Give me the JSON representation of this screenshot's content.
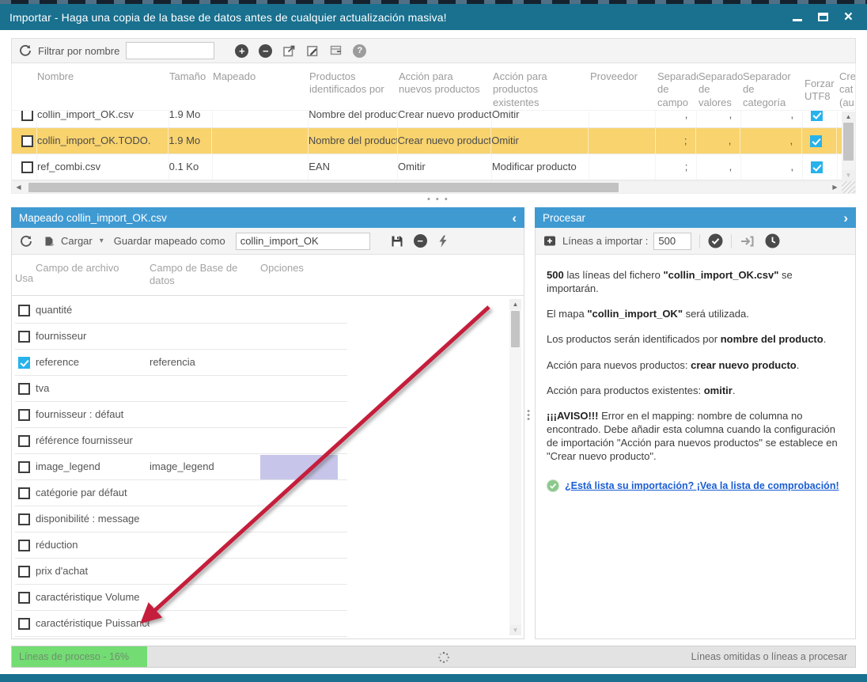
{
  "window": {
    "title": "Importar - Haga una copia de la base de datos antes de cualquier actualización masiva!"
  },
  "colors": {
    "titlebar": "#19708f",
    "panel_header": "#3f9ad2",
    "selected_row_yellow": "#f8d36e",
    "progress_green": "#73dc73",
    "link_blue": "#1a5dd4",
    "checkbox_blue": "#27b2ec",
    "annotation_arrow_red": "#c51e3c"
  },
  "icons": {
    "refresh": "circular-arrows",
    "add": "+",
    "remove": "−",
    "help": "?",
    "chevron_left": "‹",
    "chevron_right": "›",
    "caret_down": "▾",
    "splitter_h": "···",
    "splitter_v": "⋮"
  },
  "files_section": {
    "filter_label": "Filtrar por nombre",
    "filter_value": "",
    "columns": [
      "Nombre",
      "Tamaño",
      "Mapeado",
      "Productos identificados por",
      "Acción para nuevos productos",
      "Acción para productos existentes",
      "Proveedor",
      "Separado de campo",
      "Separado de valores",
      "Separador de categoría",
      "Forzar UTF8",
      "Cre cat (au"
    ],
    "rows": [
      {
        "name": "collin_import_OK.csv",
        "size": "1.9 Mo",
        "mapeado": "",
        "identified_by": "Nombre del producto",
        "new_action": "Crear nuevo producto",
        "existing_action": "Omitir",
        "proveedor": "",
        "sep_field": ",",
        "sep_values": ",",
        "sep_category": ",",
        "utf8": true,
        "selected": false
      },
      {
        "name": "collin_import_OK.TODO.",
        "size": "1.9 Mo",
        "mapeado": "",
        "identified_by": "Nombre del producto",
        "new_action": "Crear nuevo producto",
        "existing_action": "Omitir",
        "proveedor": "",
        "sep_field": ";",
        "sep_values": ",",
        "sep_category": ",",
        "utf8": true,
        "selected": true
      },
      {
        "name": "ref_combi.csv",
        "size": "0.1 Ko",
        "mapeado": "",
        "identified_by": "EAN",
        "new_action": "Omitir",
        "existing_action": "Modificar producto",
        "proveedor": "",
        "sep_field": ";",
        "sep_values": ",",
        "sep_category": ",",
        "utf8": true,
        "selected": false
      }
    ]
  },
  "mapping_panel": {
    "title": "Mapeado collin_import_OK.csv",
    "toolbar": {
      "cargar_label": "Cargar",
      "guardar_label": "Guardar mapeado como",
      "map_name_value": "collin_import_OK"
    },
    "columns": [
      "Usa",
      "Campo de archivo",
      "Campo de Base de datos",
      "Opciones"
    ],
    "rows": [
      {
        "file_field": "quantité",
        "db_field": "",
        "checked": false
      },
      {
        "file_field": "fournisseur",
        "db_field": "",
        "checked": false
      },
      {
        "file_field": "reference",
        "db_field": "referencia",
        "checked": true
      },
      {
        "file_field": "tva",
        "db_field": "",
        "checked": false
      },
      {
        "file_field": "fournisseur : défaut",
        "db_field": "",
        "checked": false
      },
      {
        "file_field": "référence fournisseur",
        "db_field": "",
        "checked": false
      },
      {
        "file_field": "image_legend",
        "db_field": "image_legend",
        "checked": false,
        "option_selected": true
      },
      {
        "file_field": "catégorie par défaut",
        "db_field": "",
        "checked": false
      },
      {
        "file_field": "disponibilité : message",
        "db_field": "",
        "checked": false
      },
      {
        "file_field": "réduction",
        "db_field": "",
        "checked": false
      },
      {
        "file_field": "prix d'achat",
        "db_field": "",
        "checked": false
      },
      {
        "file_field": "caractéristique Volume",
        "db_field": "",
        "checked": false
      },
      {
        "file_field": "caractéristique Puissance",
        "db_field": "",
        "checked": false
      }
    ]
  },
  "process_panel": {
    "title": "Procesar",
    "lines_label": "Líneas a importar :",
    "lines_value": "500",
    "messages": [
      [
        {
          "t": "500",
          "b": true
        },
        {
          "t": " las líneas del fichero ",
          "b": false
        },
        {
          "t": "\"collin_import_OK.csv\"",
          "b": true
        },
        {
          "t": " se importarán.",
          "b": false
        }
      ],
      [
        {
          "t": "El mapa ",
          "b": false
        },
        {
          "t": "\"collin_import_OK\"",
          "b": true
        },
        {
          "t": " será utilizada.",
          "b": false
        }
      ],
      [
        {
          "t": "Los productos serán identificados por ",
          "b": false
        },
        {
          "t": "nombre del producto",
          "b": true
        },
        {
          "t": ".",
          "b": false
        }
      ],
      [
        {
          "t": "Acción para nuevos productos: ",
          "b": false
        },
        {
          "t": "crear nuevo producto",
          "b": true
        },
        {
          "t": ".",
          "b": false
        }
      ],
      [
        {
          "t": "Acción para productos existentes: ",
          "b": false
        },
        {
          "t": "omitir",
          "b": true
        },
        {
          "t": ".",
          "b": false
        }
      ],
      [
        {
          "t": "¡¡¡AVISO!!!",
          "b": true
        },
        {
          "t": " Error en el mapping: nombre de columna no encontrado. Debe añadir esta columna cuando la configuración de importación \"Acción para nuevos productos\" se establece en \"Crear nuevo producto\".",
          "b": false
        }
      ]
    ],
    "link_text": "¿Está lista su importación? ¡Vea la lista de comprobación!"
  },
  "status_bar": {
    "progress_label": "Líneas de proceso - 16%",
    "progress_percent": 16,
    "right_label": "Líneas omitidas o líneas a procesar"
  }
}
